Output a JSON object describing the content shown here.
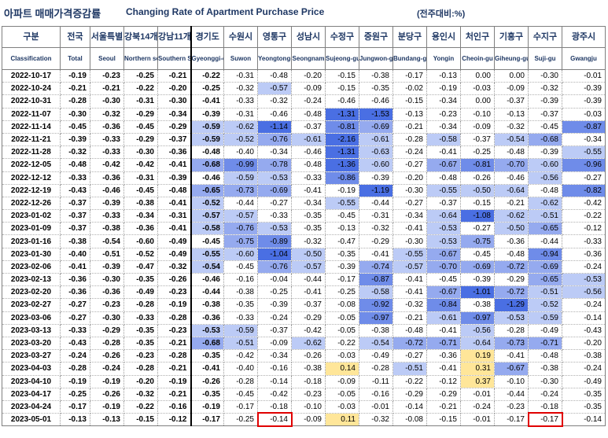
{
  "title": {
    "korean": "아파트 매매가격증감률",
    "english": "Changing Rate of Apartment Purchase Price",
    "unit": "(전주대비:%)"
  },
  "colors": {
    "very_neg": "#4a6fe3",
    "neg_1": "#6f8ce9",
    "neg_2": "#95aaef",
    "neg_3": "#bccbf6",
    "neg_4": "#dee5fb",
    "positive": "#ffe699",
    "highlight_box": "#e00000"
  },
  "chart_data": {
    "type": "table",
    "columns": [
      {
        "ko": "구분",
        "en": "Classification"
      },
      {
        "ko": "전국",
        "en": "Total"
      },
      {
        "ko": "서울특별",
        "en": "Seoul"
      },
      {
        "ko": "강북14개",
        "en": "Northern seoul"
      },
      {
        "ko": "강남11개",
        "en": "Southern Seoul"
      },
      {
        "ko": "경기도",
        "en": "Gyeonggi-do"
      },
      {
        "ko": "수원시",
        "en": "Suwon"
      },
      {
        "ko": "영통구",
        "en": "Yeongtong-gu"
      },
      {
        "ko": "성남시",
        "en": "Seongnam"
      },
      {
        "ko": "수정구",
        "en": "Sujeong-gu"
      },
      {
        "ko": "중원구",
        "en": "Jungwon-gu"
      },
      {
        "ko": "분당구",
        "en": "Bundang-gu"
      },
      {
        "ko": "용인시",
        "en": "Yongin"
      },
      {
        "ko": "처인구",
        "en": "Cheoin-gu"
      },
      {
        "ko": "기흥구",
        "en": "Giheung-gu"
      },
      {
        "ko": "수지구",
        "en": "Suji-gu"
      },
      {
        "ko": "광주시",
        "en": "Gwangju"
      }
    ],
    "rows": [
      {
        "date": "2022-10-17",
        "values": [
          "-0.19",
          "-0.23",
          "-0.25",
          "-0.21",
          "-0.22",
          "-0.31",
          "-0.48",
          "-0.20",
          "-0.15",
          "-0.38",
          "-0.17",
          "-0.13",
          "0.00",
          "0.00",
          "-0.30",
          "-0.01"
        ]
      },
      {
        "date": "2022-10-24",
        "values": [
          "-0.21",
          "-0.21",
          "-0.22",
          "-0.20",
          "-0.25",
          "-0.32",
          "-0.57",
          "-0.09",
          "-0.15",
          "-0.35",
          "-0.02",
          "-0.19",
          "-0.03",
          "-0.09",
          "-0.32",
          "-0.39"
        ]
      },
      {
        "date": "2022-10-31",
        "values": [
          "-0.28",
          "-0.30",
          "-0.31",
          "-0.30",
          "-0.41",
          "-0.33",
          "-0.32",
          "-0.24",
          "-0.46",
          "-0.46",
          "-0.15",
          "-0.34",
          "0.00",
          "-0.37",
          "-0.39",
          "-0.39"
        ]
      },
      {
        "date": "2022-11-07",
        "values": [
          "-0.30",
          "-0.32",
          "-0.29",
          "-0.34",
          "-0.39",
          "-0.31",
          "-0.46",
          "-0.48",
          "-1.31",
          "-1.53",
          "-0.13",
          "-0.23",
          "-0.10",
          "-0.13",
          "-0.37",
          "-0.03"
        ]
      },
      {
        "date": "2022-11-14",
        "values": [
          "-0.45",
          "-0.36",
          "-0.45",
          "-0.29",
          "-0.59",
          "-0.62",
          "-1.14",
          "-0.37",
          "-0.81",
          "-0.69",
          "-0.21",
          "-0.34",
          "-0.09",
          "-0.32",
          "-0.45",
          "-0.87"
        ]
      },
      {
        "date": "2022-11-21",
        "values": [
          "-0.39",
          "-0.33",
          "-0.29",
          "-0.37",
          "-0.59",
          "-0.52",
          "-0.76",
          "-0.61",
          "-2.16",
          "-0.61",
          "-0.28",
          "-0.58",
          "-0.37",
          "-0.54",
          "-0.68",
          "-0.34"
        ]
      },
      {
        "date": "2022-11-28",
        "values": [
          "-0.32",
          "-0.33",
          "-0.30",
          "-0.36",
          "-0.48",
          "-0.40",
          "-0.34",
          "-0.46",
          "-1.31",
          "-0.63",
          "-0.24",
          "-0.41",
          "-0.25",
          "-0.48",
          "-0.39",
          "-0.55"
        ]
      },
      {
        "date": "2022-12-05",
        "values": [
          "-0.48",
          "-0.42",
          "-0.42",
          "-0.41",
          "-0.68",
          "-0.99",
          "-0.78",
          "-0.48",
          "-1.36",
          "-0.60",
          "-0.27",
          "-0.67",
          "-0.81",
          "-0.70",
          "-0.60",
          "-0.96"
        ]
      },
      {
        "date": "2022-12-12",
        "values": [
          "-0.33",
          "-0.36",
          "-0.31",
          "-0.39",
          "-0.46",
          "-0.59",
          "-0.53",
          "-0.33",
          "-0.86",
          "-0.39",
          "-0.20",
          "-0.48",
          "-0.26",
          "-0.46",
          "-0.56",
          "-0.27"
        ]
      },
      {
        "date": "2022-12-19",
        "values": [
          "-0.43",
          "-0.46",
          "-0.45",
          "-0.48",
          "-0.65",
          "-0.73",
          "-0.69",
          "-0.41",
          "-0.19",
          "-1.19",
          "-0.30",
          "-0.55",
          "-0.50",
          "-0.64",
          "-0.48",
          "-0.82"
        ]
      },
      {
        "date": "2022-12-26",
        "values": [
          "-0.37",
          "-0.39",
          "-0.38",
          "-0.41",
          "-0.52",
          "-0.44",
          "-0.27",
          "-0.34",
          "-0.55",
          "-0.44",
          "-0.27",
          "-0.37",
          "-0.15",
          "-0.21",
          "-0.62",
          "-0.42"
        ]
      },
      {
        "date": "2023-01-02",
        "values": [
          "-0.37",
          "-0.33",
          "-0.34",
          "-0.31",
          "-0.57",
          "-0.57",
          "-0.33",
          "-0.35",
          "-0.45",
          "-0.31",
          "-0.34",
          "-0.64",
          "-1.08",
          "-0.62",
          "-0.51",
          "-0.22"
        ]
      },
      {
        "date": "2023-01-09",
        "values": [
          "-0.37",
          "-0.38",
          "-0.36",
          "-0.41",
          "-0.58",
          "-0.76",
          "-0.53",
          "-0.35",
          "-0.13",
          "-0.32",
          "-0.41",
          "-0.53",
          "-0.27",
          "-0.50",
          "-0.65",
          "-0.12"
        ]
      },
      {
        "date": "2023-01-16",
        "values": [
          "-0.38",
          "-0.54",
          "-0.60",
          "-0.49",
          "-0.45",
          "-0.75",
          "-0.89",
          "-0.32",
          "-0.47",
          "-0.29",
          "-0.30",
          "-0.53",
          "-0.75",
          "-0.36",
          "-0.44",
          "-0.33"
        ]
      },
      {
        "date": "2023-01-30",
        "values": [
          "-0.40",
          "-0.51",
          "-0.52",
          "-0.49",
          "-0.55",
          "-0.60",
          "-1.04",
          "-0.50",
          "-0.35",
          "-0.41",
          "-0.55",
          "-0.67",
          "-0.45",
          "-0.48",
          "-0.94",
          "-0.36"
        ]
      },
      {
        "date": "2023-02-06",
        "values": [
          "-0.41",
          "-0.39",
          "-0.47",
          "-0.32",
          "-0.54",
          "-0.45",
          "-0.76",
          "-0.57",
          "-0.39",
          "-0.74",
          "-0.57",
          "-0.70",
          "-0.69",
          "-0.72",
          "-0.69",
          "-0.24"
        ]
      },
      {
        "date": "2023-02-13",
        "values": [
          "-0.36",
          "-0.30",
          "-0.35",
          "-0.26",
          "-0.46",
          "-0.16",
          "-0.04",
          "-0.44",
          "-0.17",
          "-0.87",
          "-0.41",
          "-0.45",
          "-0.39",
          "-0.29",
          "-0.65",
          "-0.53"
        ]
      },
      {
        "date": "2023-02-20",
        "values": [
          "-0.36",
          "-0.36",
          "-0.49",
          "-0.23",
          "-0.44",
          "-0.38",
          "-0.25",
          "-0.41",
          "-0.25",
          "-0.58",
          "-0.41",
          "-0.67",
          "-1.01",
          "-0.72",
          "-0.51",
          "-0.56"
        ]
      },
      {
        "date": "2023-02-27",
        "values": [
          "-0.27",
          "-0.23",
          "-0.28",
          "-0.19",
          "-0.38",
          "-0.35",
          "-0.39",
          "-0.37",
          "-0.08",
          "-0.92",
          "-0.32",
          "-0.84",
          "-0.38",
          "-1.29",
          "-0.52",
          "-0.24"
        ]
      },
      {
        "date": "2023-03-06",
        "values": [
          "-0.27",
          "-0.30",
          "-0.33",
          "-0.28",
          "-0.36",
          "-0.33",
          "-0.24",
          "-0.29",
          "-0.05",
          "-0.97",
          "-0.21",
          "-0.61",
          "-0.97",
          "-0.53",
          "-0.59",
          "-0.14"
        ]
      },
      {
        "date": "2023-03-13",
        "values": [
          "-0.33",
          "-0.29",
          "-0.35",
          "-0.23",
          "-0.53",
          "-0.59",
          "-0.37",
          "-0.42",
          "-0.05",
          "-0.38",
          "-0.48",
          "-0.41",
          "-0.56",
          "-0.28",
          "-0.49",
          "-0.43"
        ]
      },
      {
        "date": "2023-03-20",
        "values": [
          "-0.43",
          "-0.28",
          "-0.35",
          "-0.21",
          "-0.68",
          "-0.51",
          "-0.09",
          "-0.62",
          "-0.22",
          "-0.54",
          "-0.72",
          "-0.71",
          "-0.64",
          "-0.73",
          "-0.71",
          "-0.20"
        ]
      },
      {
        "date": "2023-03-27",
        "values": [
          "-0.24",
          "-0.26",
          "-0.23",
          "-0.28",
          "-0.35",
          "-0.42",
          "-0.34",
          "-0.26",
          "-0.03",
          "-0.49",
          "-0.27",
          "-0.36",
          "0.19",
          "-0.41",
          "-0.48",
          "-0.38"
        ]
      },
      {
        "date": "2023-04-03",
        "values": [
          "-0.28",
          "-0.24",
          "-0.28",
          "-0.21",
          "-0.41",
          "-0.40",
          "-0.16",
          "-0.38",
          "0.14",
          "-0.28",
          "-0.51",
          "-0.41",
          "0.31",
          "-0.67",
          "-0.38",
          "-0.24"
        ]
      },
      {
        "date": "2023-04-10",
        "values": [
          "-0.19",
          "-0.19",
          "-0.20",
          "-0.19",
          "-0.26",
          "-0.28",
          "-0.14",
          "-0.18",
          "-0.09",
          "-0.11",
          "-0.22",
          "-0.12",
          "0.37",
          "-0.10",
          "-0.30",
          "-0.49"
        ]
      },
      {
        "date": "2023-04-17",
        "values": [
          "-0.25",
          "-0.26",
          "-0.32",
          "-0.21",
          "-0.35",
          "-0.45",
          "-0.42",
          "-0.23",
          "-0.05",
          "-0.16",
          "-0.29",
          "-0.29",
          "-0.01",
          "-0.44",
          "-0.24",
          "-0.35"
        ]
      },
      {
        "date": "2023-04-24",
        "values": [
          "-0.17",
          "-0.19",
          "-0.22",
          "-0.16",
          "-0.19",
          "-0.17",
          "-0.18",
          "-0.10",
          "-0.03",
          "-0.01",
          "-0.14",
          "-0.21",
          "-0.24",
          "-0.23",
          "-0.18",
          "-0.35"
        ]
      },
      {
        "date": "2023-05-01",
        "values": [
          "-0.13",
          "-0.13",
          "-0.15",
          "-0.12",
          "-0.17",
          "-0.25",
          "-0.14",
          "-0.09",
          "0.11",
          "-0.32",
          "-0.08",
          "-0.15",
          "-0.01",
          "-0.17",
          "-0.17",
          "-0.14"
        ]
      }
    ],
    "highlighted_cells": [
      {
        "date": "2023-05-01",
        "column": "영통구"
      },
      {
        "date": "2023-05-01",
        "column": "수지구"
      }
    ]
  }
}
